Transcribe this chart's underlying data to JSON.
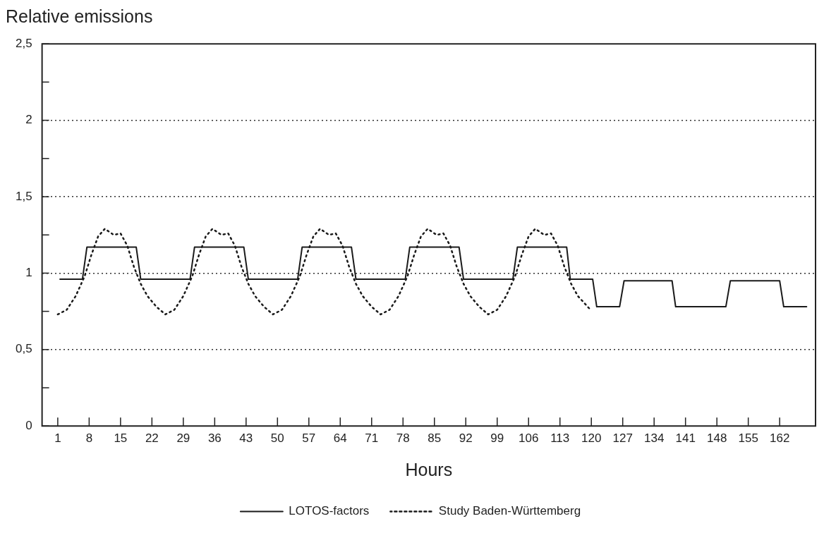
{
  "chart_data": {
    "type": "line",
    "ylabel": "Relative emissions",
    "xlabel": "Hours",
    "xlim": [
      -2.5,
      170
    ],
    "xticks": [
      1,
      8,
      15,
      22,
      29,
      36,
      43,
      50,
      57,
      64,
      71,
      78,
      85,
      92,
      99,
      106,
      113,
      120,
      127,
      134,
      141,
      148,
      155,
      162
    ],
    "ylim": [
      0,
      2.5
    ],
    "yticks": [
      0,
      {
        "value": 0.25,
        "label": null
      },
      {
        "value": 0.5,
        "label": "0,5"
      },
      {
        "value": 0.75,
        "label": null
      },
      1,
      {
        "value": 1.25,
        "label": null
      },
      {
        "value": 1.5,
        "label": "1,5"
      },
      {
        "value": 1.75,
        "label": null
      },
      2,
      {
        "value": 2.25,
        "label": null
      },
      {
        "value": 2.5,
        "label": "2,5"
      }
    ],
    "grid": "y",
    "legend": "bottom",
    "series": [
      {
        "name": "LOTOS-factors",
        "color": "#1a1a1a",
        "line_style": "solid",
        "x": [
          1.5,
          6.5,
          7.5,
          18.5,
          19.5,
          30.5,
          31.5,
          42.5,
          43.5,
          54.5,
          55.5,
          66.5,
          67.5,
          78.5,
          79.5,
          90.5,
          91.5,
          102.5,
          103.5,
          114.5,
          115.3,
          120.3,
          121.2,
          126.3,
          127.3,
          138,
          138.8,
          150,
          151,
          162,
          162.9,
          168
        ],
        "values": [
          0.96,
          0.96,
          1.17,
          1.17,
          0.96,
          0.96,
          1.17,
          1.17,
          0.96,
          0.96,
          1.17,
          1.17,
          0.96,
          0.96,
          1.17,
          1.17,
          0.96,
          0.96,
          1.17,
          1.17,
          0.96,
          0.96,
          0.78,
          0.78,
          0.95,
          0.95,
          0.78,
          0.78,
          0.95,
          0.95,
          0.78,
          0.78
        ]
      },
      {
        "name": "Study Baden-Württemberg",
        "color": "#1a1a1a",
        "line_style": "dotted",
        "x": [
          1,
          3,
          5,
          7,
          8.5,
          10,
          11.5,
          13.5,
          15,
          16.5,
          18,
          19.5,
          21,
          23,
          25,
          27,
          29,
          31,
          32.5,
          34,
          35.5,
          37.5,
          39,
          40.5,
          42,
          43.5,
          45,
          47,
          49,
          51,
          53,
          55,
          56.5,
          58,
          59.5,
          61.5,
          63,
          64.5,
          66,
          67.5,
          69,
          71,
          73,
          75,
          77,
          79,
          80.5,
          82,
          83.5,
          85.5,
          87,
          88.5,
          90,
          91.5,
          93,
          95,
          97,
          99,
          101,
          103,
          104.5,
          106,
          107.5,
          109.5,
          111,
          112.5,
          114,
          115.5,
          117,
          119.5
        ],
        "values": [
          0.73,
          0.76,
          0.85,
          0.98,
          1.12,
          1.24,
          1.29,
          1.25,
          1.26,
          1.18,
          1.04,
          0.93,
          0.85,
          0.78,
          0.73,
          0.76,
          0.85,
          0.98,
          1.12,
          1.24,
          1.29,
          1.25,
          1.26,
          1.18,
          1.04,
          0.93,
          0.85,
          0.78,
          0.73,
          0.76,
          0.85,
          0.98,
          1.12,
          1.24,
          1.29,
          1.25,
          1.26,
          1.18,
          1.04,
          0.93,
          0.85,
          0.78,
          0.73,
          0.76,
          0.85,
          0.98,
          1.12,
          1.24,
          1.29,
          1.25,
          1.26,
          1.18,
          1.04,
          0.93,
          0.85,
          0.78,
          0.73,
          0.76,
          0.85,
          0.98,
          1.12,
          1.24,
          1.29,
          1.25,
          1.26,
          1.18,
          1.04,
          0.93,
          0.85,
          0.77
        ]
      }
    ]
  }
}
